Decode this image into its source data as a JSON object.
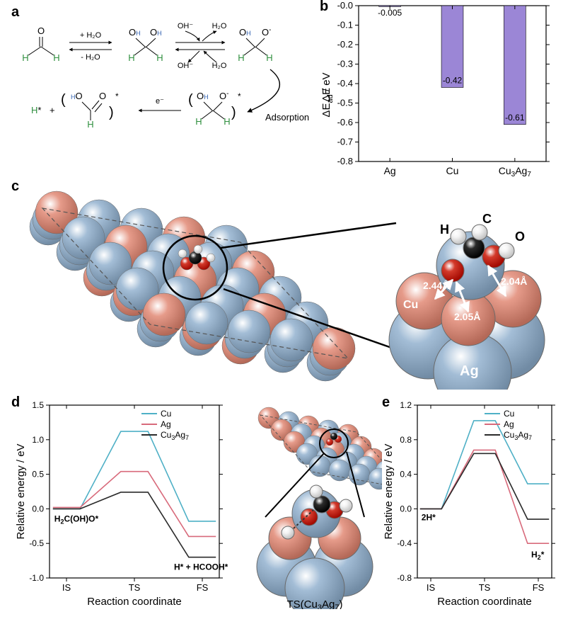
{
  "figure": {
    "panels": {
      "a": {
        "label": "a",
        "scheme_labels": {
          "plusH2O": "+ H₂O",
          "minusH2O": "- H₂O",
          "OHminus": "OH⁻",
          "H2O": "H₂O",
          "Adsorption": "Adsorption",
          "eminus": "e⁻",
          "Hstar": "H*"
        }
      },
      "b": {
        "label": "b",
        "type": "bar",
        "ylabel": "ΔE_ad / eV",
        "ylim": [
          -0.8,
          0.0
        ],
        "ytick_step": 0.1,
        "categories": [
          "Ag",
          "Cu",
          "Cu₃Ag₇"
        ],
        "values": [
          -0.005,
          -0.42,
          -0.61
        ],
        "value_labels": [
          "-0.005",
          "-0.42",
          "-0.61"
        ],
        "bar_color": "#9b86d6",
        "bar_width": 0.35,
        "background_color": "#ffffff"
      },
      "c": {
        "label": "c",
        "atom_labels": [
          "H",
          "C",
          "O",
          "Cu",
          "Ag"
        ],
        "bond_lengths": [
          "2.44Å",
          "2.05Å",
          "2.04Å"
        ],
        "colors": {
          "Ag": "#a3bdd6",
          "Cu": "#e69b8a",
          "C": "#2b2b2b",
          "O": "#d33a2b",
          "H": "#f4f4f4",
          "outline": "#6a6a6a"
        }
      },
      "d": {
        "label": "d",
        "type": "line",
        "xlabel": "Reaction coordinate",
        "ylabel": "Relative energy / eV",
        "x_categories": [
          "IS",
          "TS",
          "FS"
        ],
        "ylim": [
          -1.0,
          1.5
        ],
        "ytick_step": 0.5,
        "series": [
          {
            "name": "Cu",
            "color": "#4fb0c6",
            "y": [
              0.0,
              1.12,
              -0.18
            ]
          },
          {
            "name": "Ag",
            "color": "#d86a7b",
            "y": [
              0.02,
              0.54,
              -0.4
            ]
          },
          {
            "name": "Cu₃Ag₇",
            "color": "#2b2b2b",
            "y": [
              0.0,
              0.24,
              -0.7
            ]
          }
        ],
        "annotations": {
          "IS_label": "H₂C(OH)O*",
          "FS_label": "H* + HCOOH*",
          "TS_caption": "TS(Cu₃Ag₇)"
        },
        "line_width": 1.6
      },
      "e": {
        "label": "e",
        "type": "line",
        "xlabel": "Reaction coordinate",
        "ylabel": "Relative energy / eV",
        "x_categories": [
          "IS",
          "TS",
          "FS"
        ],
        "ylim": [
          -0.8,
          1.2
        ],
        "ytick_step": 0.4,
        "series": [
          {
            "name": "Cu",
            "color": "#4fb0c6",
            "y": [
              0.0,
              1.02,
              0.29
            ]
          },
          {
            "name": "Ag",
            "color": "#d86a7b",
            "y": [
              0.0,
              0.68,
              -0.4
            ]
          },
          {
            "name": "Cu₃Ag₇",
            "color": "#2b2b2b",
            "y": [
              0.0,
              0.64,
              -0.12
            ]
          }
        ],
        "annotations": {
          "IS_label": "2H*",
          "FS_label": "H₂*"
        },
        "line_width": 1.6
      }
    }
  }
}
